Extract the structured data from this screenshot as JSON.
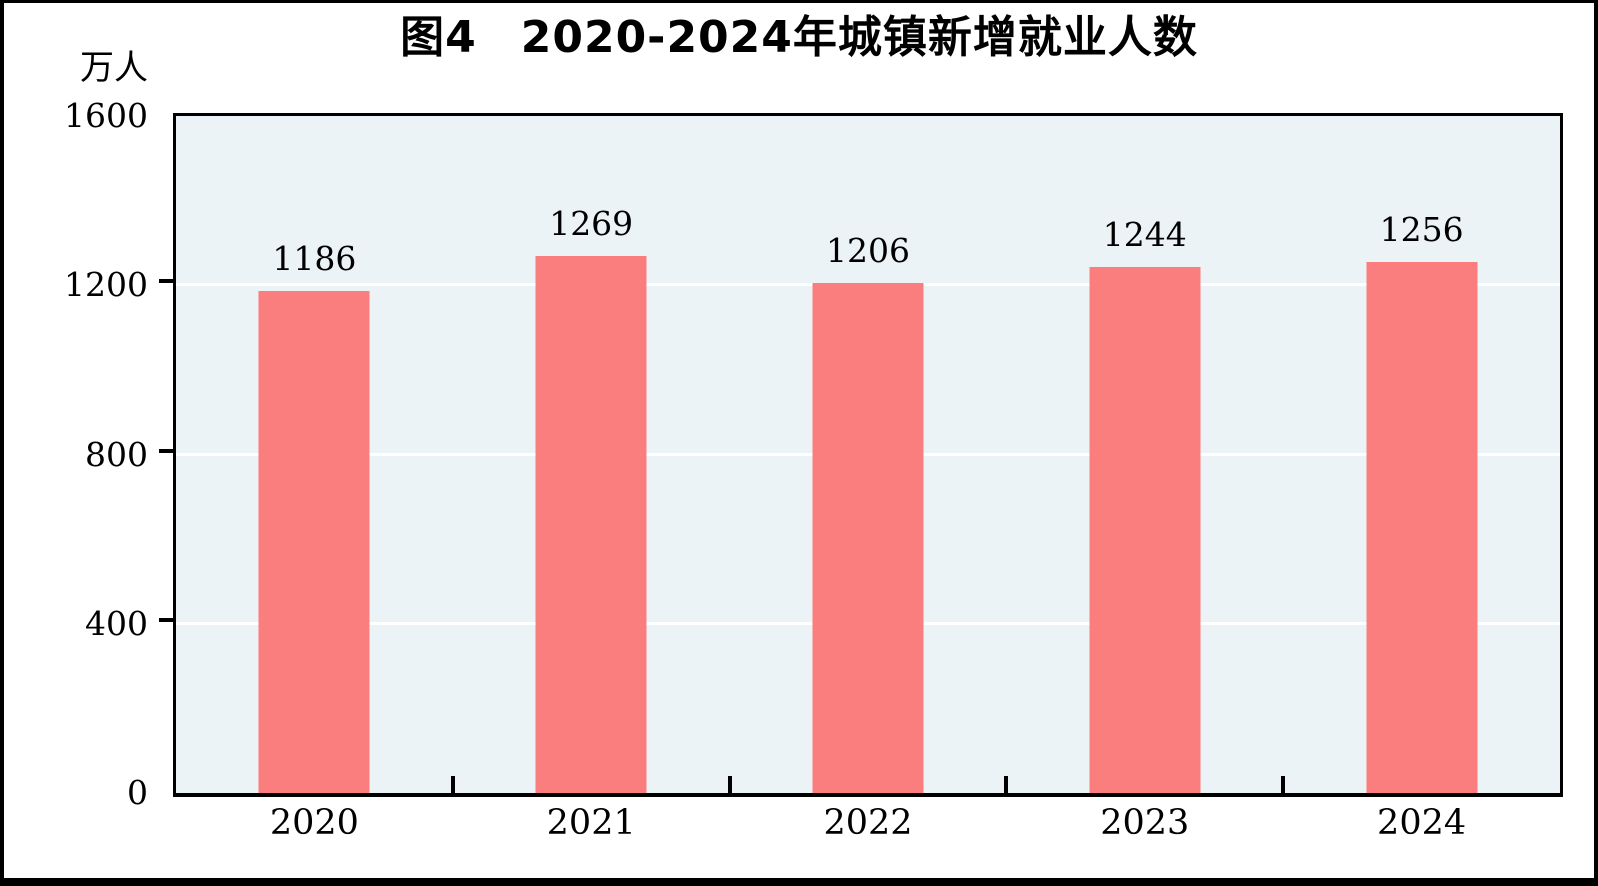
{
  "chart_data": {
    "type": "bar",
    "title": {
      "figure_label": "图4",
      "text": "2020-2024年城镇新增就业人数"
    },
    "unit_label": "万人",
    "categories": [
      "2020",
      "2021",
      "2022",
      "2023",
      "2024"
    ],
    "values": [
      1186,
      1269,
      1206,
      1244,
      1256
    ],
    "xlabel": "",
    "ylabel": "万人",
    "ylim": [
      0,
      1600
    ],
    "yticks": [
      0,
      400,
      800,
      1200,
      1600
    ],
    "gridlines": [
      400,
      800,
      1200
    ],
    "grid_on": true,
    "legend_position": "none",
    "colors": {
      "bar": "#FB7E7E",
      "plot_bg": "#ECF3F7",
      "gridline": "#FFFFFF",
      "axis": "#000000",
      "text": "#000000",
      "frame": "#000000"
    }
  }
}
